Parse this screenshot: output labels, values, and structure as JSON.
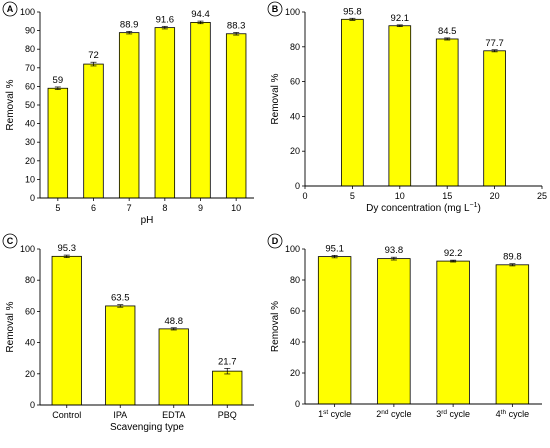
{
  "colors": {
    "bar_fill": "#ffff00",
    "bar_stroke": "#000000",
    "axis": "#000000"
  },
  "chart_data": [
    {
      "panel": "A",
      "type": "bar",
      "categories": [
        "5",
        "6",
        "7",
        "8",
        "9",
        "10"
      ],
      "values": [
        59,
        72,
        88.9,
        91.6,
        94.4,
        88.3
      ],
      "value_labels": [
        "59",
        "72",
        "88.9",
        "91.6",
        "94.4",
        "88.3"
      ],
      "errors": [
        0.7,
        1.0,
        0.7,
        0.7,
        0.7,
        0.7
      ],
      "xlabel": "pH",
      "ylabel": "Removal %",
      "ylim": [
        0,
        100
      ],
      "yticks": [
        0,
        10,
        20,
        30,
        40,
        50,
        60,
        70,
        80,
        90,
        100
      ],
      "grid": false
    },
    {
      "panel": "B",
      "type": "bar",
      "x": [
        5,
        10,
        15,
        20
      ],
      "values": [
        95.8,
        92.1,
        84.5,
        77.7
      ],
      "value_labels": [
        "95.8",
        "92.1",
        "84.5",
        "77.7"
      ],
      "errors": [
        0.6,
        0.5,
        0.6,
        0.6
      ],
      "xlabel": "Dy concentration (mg L",
      "xlabel_sup": "−1",
      "xlabel_end": ")",
      "ylabel": "Removal %",
      "xlim": [
        0,
        25
      ],
      "xticks": [
        0,
        5,
        10,
        15,
        20,
        25
      ],
      "ylim": [
        0,
        100
      ],
      "yticks": [
        0,
        20,
        40,
        60,
        80,
        100
      ],
      "grid": false
    },
    {
      "panel": "C",
      "type": "bar",
      "categories": [
        "Control",
        "IPA",
        "EDTA",
        "PBQ"
      ],
      "values": [
        95.3,
        63.5,
        48.8,
        21.7
      ],
      "value_labels": [
        "95.3",
        "63.5",
        "48.8",
        "21.7"
      ],
      "errors": [
        0.8,
        0.8,
        0.7,
        1.8
      ],
      "xlabel": "Scavenging type",
      "ylabel": "Removal %",
      "ylim": [
        0,
        100
      ],
      "yticks": [
        0,
        20,
        40,
        60,
        80,
        100
      ],
      "grid": false
    },
    {
      "panel": "D",
      "type": "bar",
      "categories": [
        {
          "main": "1",
          "sup": "st",
          "rest": " cycle"
        },
        {
          "main": "2",
          "sup": "nd",
          "rest": " cycle"
        },
        {
          "main": "3",
          "sup": "rd",
          "rest": " cycle"
        },
        {
          "main": "4",
          "sup": "th",
          "rest": " cycle"
        }
      ],
      "values": [
        95.1,
        93.8,
        92.2,
        89.8
      ],
      "value_labels": [
        "95.1",
        "93.8",
        "92.2",
        "89.8"
      ],
      "errors": [
        0.8,
        0.9,
        0.6,
        0.7
      ],
      "xlabel": "",
      "ylabel": "Removal %",
      "ylim": [
        0,
        100
      ],
      "yticks": [
        0,
        20,
        40,
        60,
        80,
        100
      ],
      "grid": false
    }
  ]
}
